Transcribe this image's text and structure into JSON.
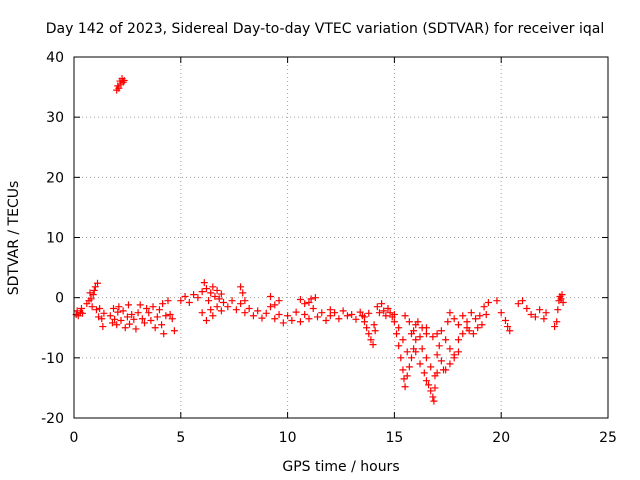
{
  "chart_data": {
    "type": "scatter",
    "title": "Day 142 of 2023, Sidereal Day-to-day VTEC variation (SDTVAR) for receiver iqal",
    "xlabel": "GPS time / hours",
    "ylabel": "SDTVAR / TECUs",
    "xlim": [
      0,
      25
    ],
    "ylim": [
      -20,
      40
    ],
    "xticks": [
      0,
      5,
      10,
      15,
      20,
      25
    ],
    "yticks": [
      -20,
      -10,
      0,
      10,
      20,
      30,
      40
    ],
    "grid": true,
    "marker": "+",
    "marker_color": "#ff0000",
    "series": [
      {
        "name": "SDTVAR",
        "points": [
          [
            0.1,
            -2.8
          ],
          [
            0.15,
            -2.2
          ],
          [
            0.2,
            -3.0
          ],
          [
            0.3,
            -2.5
          ],
          [
            0.35,
            -1.8
          ],
          [
            0.4,
            -2.6
          ],
          [
            0.6,
            -1.0
          ],
          [
            0.7,
            -0.5
          ],
          [
            0.75,
            0.8
          ],
          [
            0.8,
            -0.2
          ],
          [
            0.85,
            -1.5
          ],
          [
            0.9,
            0.5
          ],
          [
            0.95,
            1.2
          ],
          [
            1.0,
            1.8
          ],
          [
            1.05,
            -2.0
          ],
          [
            1.1,
            2.4
          ],
          [
            1.15,
            -3.2
          ],
          [
            1.2,
            -1.8
          ],
          [
            1.3,
            -3.5
          ],
          [
            1.35,
            -4.8
          ],
          [
            1.4,
            -2.6
          ],
          [
            1.7,
            -3.0
          ],
          [
            1.8,
            -4.2
          ],
          [
            1.85,
            -1.8
          ],
          [
            1.9,
            -3.6
          ],
          [
            2.0,
            -4.5
          ],
          [
            2.05,
            -2.4
          ],
          [
            2.1,
            -1.5
          ],
          [
            2.2,
            -3.8
          ],
          [
            2.3,
            -2.2
          ],
          [
            2.4,
            -5.0
          ],
          [
            2.5,
            -3.2
          ],
          [
            2.55,
            -1.2
          ],
          [
            2.6,
            -4.4
          ],
          [
            2.7,
            -2.8
          ],
          [
            2.8,
            -3.6
          ],
          [
            2.9,
            -5.2
          ],
          [
            3.0,
            -2.5
          ],
          [
            3.1,
            -1.2
          ],
          [
            3.2,
            -3.5
          ],
          [
            3.3,
            -4.2
          ],
          [
            3.4,
            -1.8
          ],
          [
            3.5,
            -2.5
          ],
          [
            3.6,
            -3.8
          ],
          [
            3.7,
            -1.5
          ],
          [
            3.8,
            -5.0
          ],
          [
            3.9,
            -3.2
          ],
          [
            4.0,
            -2.0
          ],
          [
            4.1,
            -4.5
          ],
          [
            4.15,
            -1.0
          ],
          [
            4.2,
            -6.0
          ],
          [
            4.3,
            -3.0
          ],
          [
            4.4,
            -0.5
          ],
          [
            4.5,
            -2.8
          ],
          [
            4.6,
            -3.5
          ],
          [
            4.7,
            -5.5
          ],
          [
            2.0,
            34.5
          ],
          [
            2.05,
            35.2
          ],
          [
            2.1,
            34.8
          ],
          [
            2.15,
            36.0
          ],
          [
            2.2,
            35.5
          ],
          [
            2.25,
            36.4
          ],
          [
            2.3,
            35.8
          ],
          [
            2.35,
            36.1
          ],
          [
            5.0,
            -0.5
          ],
          [
            5.2,
            0.2
          ],
          [
            5.4,
            -0.8
          ],
          [
            5.6,
            0.5
          ],
          [
            5.8,
            0.0
          ],
          [
            6.0,
            1.0
          ],
          [
            6.1,
            2.5
          ],
          [
            6.2,
            1.5
          ],
          [
            6.3,
            -0.5
          ],
          [
            6.4,
            0.8
          ],
          [
            6.5,
            1.8
          ],
          [
            6.6,
            0.2
          ],
          [
            6.7,
            1.2
          ],
          [
            6.8,
            -0.2
          ],
          [
            6.9,
            0.6
          ],
          [
            6.0,
            -2.5
          ],
          [
            6.2,
            -3.8
          ],
          [
            6.4,
            -2.0
          ],
          [
            6.5,
            -3.0
          ],
          [
            6.7,
            -1.5
          ],
          [
            6.9,
            -2.2
          ],
          [
            7.0,
            -0.8
          ],
          [
            7.2,
            -1.5
          ],
          [
            7.4,
            -0.5
          ],
          [
            7.6,
            -2.0
          ],
          [
            7.8,
            -1.0
          ],
          [
            8.0,
            -2.5
          ],
          [
            8.2,
            -1.8
          ],
          [
            8.4,
            -3.0
          ],
          [
            8.6,
            -2.2
          ],
          [
            8.8,
            -3.4
          ],
          [
            9.0,
            -2.6
          ],
          [
            9.2,
            -1.5
          ],
          [
            7.8,
            1.8
          ],
          [
            7.9,
            0.8
          ],
          [
            8.0,
            -0.5
          ],
          [
            9.4,
            -3.5
          ],
          [
            9.6,
            -2.8
          ],
          [
            9.8,
            -4.2
          ],
          [
            10.0,
            -3.0
          ],
          [
            10.2,
            -3.8
          ],
          [
            10.4,
            -2.4
          ],
          [
            10.6,
            -4.0
          ],
          [
            10.8,
            -2.8
          ],
          [
            11.0,
            -3.5
          ],
          [
            11.2,
            -1.8
          ],
          [
            11.4,
            -3.2
          ],
          [
            11.6,
            -2.5
          ],
          [
            11.8,
            -3.8
          ],
          [
            12.0,
            -2.0
          ],
          [
            9.2,
            0.2
          ],
          [
            9.4,
            -1.2
          ],
          [
            9.6,
            -0.5
          ],
          [
            10.6,
            -0.3
          ],
          [
            10.8,
            -1.0
          ],
          [
            11.0,
            -0.8
          ],
          [
            11.1,
            -0.2
          ],
          [
            11.3,
            0.0
          ],
          [
            12.0,
            -3.0
          ],
          [
            12.2,
            -2.5
          ],
          [
            12.4,
            -3.5
          ],
          [
            12.6,
            -2.2
          ],
          [
            12.8,
            -3.0
          ],
          [
            13.0,
            -2.8
          ],
          [
            13.2,
            -3.6
          ],
          [
            13.4,
            -2.4
          ],
          [
            13.6,
            -3.2
          ],
          [
            13.8,
            -2.6
          ],
          [
            13.5,
            -3.0
          ],
          [
            13.6,
            -4.0
          ],
          [
            13.7,
            -5.0
          ],
          [
            13.8,
            -6.0
          ],
          [
            13.9,
            -7.0
          ],
          [
            14.0,
            -7.8
          ],
          [
            14.05,
            -4.5
          ],
          [
            14.1,
            -5.5
          ],
          [
            14.2,
            -1.5
          ],
          [
            14.3,
            -2.5
          ],
          [
            14.4,
            -1.0
          ],
          [
            14.5,
            -2.2
          ],
          [
            14.6,
            -3.0
          ],
          [
            14.7,
            -1.8
          ],
          [
            14.8,
            -2.5
          ],
          [
            14.9,
            -3.2
          ],
          [
            15.0,
            -2.8
          ],
          [
            15.0,
            -4.0
          ],
          [
            15.1,
            -6.0
          ],
          [
            15.2,
            -8.0
          ],
          [
            15.3,
            -10.0
          ],
          [
            15.4,
            -12.0
          ],
          [
            15.45,
            -13.5
          ],
          [
            15.5,
            -14.8
          ],
          [
            15.6,
            -13.0
          ],
          [
            15.7,
            -11.5
          ],
          [
            15.8,
            -10.0
          ],
          [
            15.9,
            -8.5
          ],
          [
            16.0,
            -7.0
          ],
          [
            15.2,
            -5.0
          ],
          [
            15.4,
            -7.0
          ],
          [
            15.6,
            -9.0
          ],
          [
            15.8,
            -6.0
          ],
          [
            16.0,
            -4.5
          ],
          [
            16.2,
            -6.5
          ],
          [
            15.5,
            -3.0
          ],
          [
            15.7,
            -4.0
          ],
          [
            15.9,
            -5.5
          ],
          [
            16.1,
            -4.0
          ],
          [
            16.3,
            -5.0
          ],
          [
            16.5,
            -6.0
          ],
          [
            16.0,
            -9.0
          ],
          [
            16.2,
            -11.0
          ],
          [
            16.4,
            -12.5
          ],
          [
            16.5,
            -13.8
          ],
          [
            16.6,
            -14.5
          ],
          [
            16.7,
            -15.5
          ],
          [
            16.8,
            -16.5
          ],
          [
            16.85,
            -17.2
          ],
          [
            16.9,
            -15.0
          ],
          [
            17.0,
            -12.5
          ],
          [
            16.3,
            -8.5
          ],
          [
            16.5,
            -10.0
          ],
          [
            16.7,
            -11.5
          ],
          [
            16.9,
            -13.0
          ],
          [
            17.0,
            -9.5
          ],
          [
            17.1,
            -8.0
          ],
          [
            17.2,
            -10.5
          ],
          [
            17.3,
            -12.0
          ],
          [
            16.5,
            -5.0
          ],
          [
            16.8,
            -6.5
          ],
          [
            17.0,
            -6.0
          ],
          [
            17.2,
            -5.5
          ],
          [
            17.4,
            -7.0
          ],
          [
            17.6,
            -8.5
          ],
          [
            17.8,
            -10.0
          ],
          [
            18.0,
            -9.0
          ],
          [
            17.4,
            -12.0
          ],
          [
            17.6,
            -11.0
          ],
          [
            17.8,
            -9.5
          ],
          [
            18.0,
            -7.0
          ],
          [
            18.2,
            -6.0
          ],
          [
            18.4,
            -5.0
          ],
          [
            17.5,
            -4.0
          ],
          [
            17.6,
            -2.5
          ],
          [
            17.8,
            -3.5
          ],
          [
            18.0,
            -4.5
          ],
          [
            18.2,
            -3.0
          ],
          [
            18.4,
            -4.0
          ],
          [
            18.6,
            -2.5
          ],
          [
            18.8,
            -3.5
          ],
          [
            19.0,
            -3.0
          ],
          [
            19.2,
            -1.5
          ],
          [
            19.3,
            -2.8
          ],
          [
            19.4,
            -0.8
          ],
          [
            18.5,
            -5.5
          ],
          [
            18.7,
            -6.0
          ],
          [
            18.9,
            -5.0
          ],
          [
            19.1,
            -4.5
          ],
          [
            19.8,
            -0.5
          ],
          [
            20.0,
            -2.5
          ],
          [
            20.2,
            -3.8
          ],
          [
            20.3,
            -4.8
          ],
          [
            20.4,
            -5.5
          ],
          [
            20.8,
            -1.0
          ],
          [
            21.0,
            -0.5
          ],
          [
            21.2,
            -1.8
          ],
          [
            21.4,
            -2.8
          ],
          [
            21.6,
            -3.2
          ],
          [
            21.8,
            -2.0
          ],
          [
            22.0,
            -3.5
          ],
          [
            22.1,
            -2.5
          ],
          [
            22.5,
            -4.8
          ],
          [
            22.6,
            -4.0
          ],
          [
            22.65,
            -2.0
          ],
          [
            22.7,
            -0.5
          ],
          [
            22.75,
            0.2
          ],
          [
            22.8,
            -0.2
          ],
          [
            22.85,
            0.5
          ],
          [
            22.9,
            -0.8
          ]
        ]
      }
    ]
  }
}
